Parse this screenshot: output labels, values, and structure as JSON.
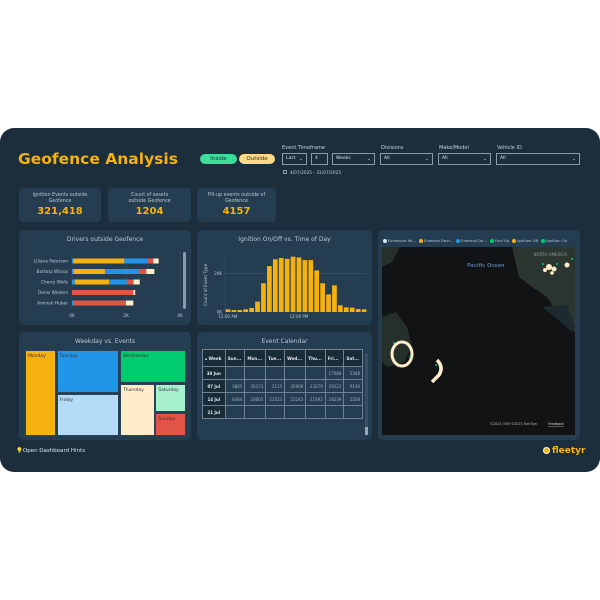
{
  "header": {
    "title": "Geofence Analysis",
    "toggle_inside": "Inside",
    "toggle_outside": "Outside"
  },
  "filters": {
    "timeframe_label": "Event Timeframe",
    "timeframe_mode": "Last",
    "timeframe_count": "4",
    "timeframe_unit": "Weeks",
    "date_range": "4/07/2025 - 31/07/2025",
    "divisions_label": "Divisions",
    "divisions_value": "All",
    "make_label": "Make/Model",
    "make_value": "All",
    "vehicle_label": "Vehicle ID",
    "vehicle_value": "All"
  },
  "kpis": [
    {
      "label": "Ignition Events outside Geofence",
      "value": "321,418"
    },
    {
      "label": "Count of assets outside Geofence",
      "value": "1204"
    },
    {
      "label": "Fill-up events outside of Geofence",
      "value": "4157"
    }
  ],
  "colors": {
    "orange": "#f5b20f",
    "blue": "#2196e8",
    "red": "#e05545",
    "cream": "#ffeccb",
    "green": "#00cc6f",
    "lightblue": "#b4dbf7",
    "mint": "#a6f0cf",
    "background": "#1c2d3c",
    "panel": "#243d50"
  },
  "drivers": {
    "title": "Drivers outside Geofence",
    "xticks": [
      "0K",
      "2K",
      "4K"
    ],
    "xmax": 4,
    "rows": [
      {
        "name": "Liliana Peterson",
        "segments": [
          [
            "blue",
            0.05
          ],
          [
            "orange",
            1.89
          ],
          [
            "blue",
            0.86
          ],
          [
            "red",
            0.21
          ],
          [
            "cream",
            0.2
          ]
        ]
      },
      {
        "name": "Bartosz Wilcox",
        "segments": [
          [
            "blue",
            0.05
          ],
          [
            "orange",
            1.17
          ],
          [
            "blue",
            1.25
          ],
          [
            "red",
            0.28
          ],
          [
            "cream",
            0.3
          ]
        ]
      },
      {
        "name": "Cherry Wells",
        "segments": [
          [
            "blue",
            0.1
          ],
          [
            "orange",
            1.28
          ],
          [
            "blue",
            0.65
          ],
          [
            "red",
            0.25
          ],
          [
            "cream",
            0.23
          ]
        ]
      },
      {
        "name": "Denis Winters",
        "segments": [
          [
            "red",
            2.27
          ],
          [
            "cream",
            0.07
          ]
        ]
      },
      {
        "name": "Aminah Huber",
        "segments": [
          [
            "blue",
            0.04
          ],
          [
            "red",
            1.96
          ],
          [
            "cream",
            0.27
          ]
        ]
      }
    ]
  },
  "chart_data": {
    "type": "bar",
    "title": "Ignition On/Off vs. Time of Day",
    "xlabel": "",
    "ylabel": "Count of Event Type",
    "yticks": [
      "0K",
      "20K"
    ],
    "ylim": [
      0,
      30000
    ],
    "xtick_labels": {
      "0": "12:00 AM",
      "12": "12:00 PM"
    },
    "categories": [
      "0",
      "1",
      "2",
      "3",
      "4",
      "5",
      "6",
      "7",
      "8",
      "9",
      "10",
      "11",
      "12",
      "13",
      "14",
      "15",
      "16",
      "17",
      "18",
      "19",
      "20",
      "21",
      "22",
      "23"
    ],
    "values": [
      1400,
      1000,
      1000,
      1400,
      2100,
      5400,
      15000,
      24000,
      27500,
      28200,
      27800,
      28900,
      28500,
      27100,
      27100,
      21700,
      15000,
      9200,
      13900,
      3500,
      2400,
      2300,
      1600,
      1400
    ],
    "grid": true
  },
  "weekday": {
    "title": "Weekday vs. Events",
    "cells": [
      {
        "day": "Monday",
        "color": "#f5b20f"
      },
      {
        "day": "Tuesday",
        "color": "#2196e8"
      },
      {
        "day": "Friday",
        "color": "#b4dbf7"
      },
      {
        "day": "Wednesday",
        "color": "#00cc6f"
      },
      {
        "day": "Thursday",
        "color": "#ffeccb"
      },
      {
        "day": "Saturday",
        "color": "#a6f0cf"
      },
      {
        "day": "Sunday",
        "color": "#e05545"
      }
    ]
  },
  "calendar": {
    "title": "Event Calendar",
    "columns": [
      "Week",
      "Sun...",
      "Mon...",
      "Tue...",
      "Wed...",
      "Thu...",
      "Fri...",
      "Sat..."
    ],
    "rows": [
      [
        "30 Jun",
        "",
        "",
        "",
        "",
        "",
        "17088",
        "5348"
      ],
      [
        "07 Jul",
        "3805",
        "20373",
        "2115",
        "20908",
        "23279",
        "29222",
        "9140"
      ],
      [
        "14 Jul",
        "6464",
        "20603",
        "21523",
        "22243",
        "21492",
        "18239",
        "5508"
      ]
    ]
  },
  "map": {
    "legend": [
      {
        "label": "Excessive Idl...",
        "color": "#cfe6f7"
      },
      {
        "label": "External Devi...",
        "color": "#f5b20f"
      },
      {
        "label": "External De...",
        "color": "#2196e8"
      },
      {
        "label": "Fuel Up",
        "color": "#00cc6f"
      },
      {
        "label": "Ignition Off",
        "color": "#f5b20f"
      },
      {
        "label": "Ignition On",
        "color": "#00cc6f"
      }
    ],
    "region_label": "NORTH AMERICA",
    "ocean_label": "Pacific Ocean",
    "attribution": "©2025 OSM  ©2025 TomTom",
    "feedback": "Feedback"
  },
  "footer": {
    "hints": "Open Dashboard Hints",
    "logo": "fleetyr"
  }
}
